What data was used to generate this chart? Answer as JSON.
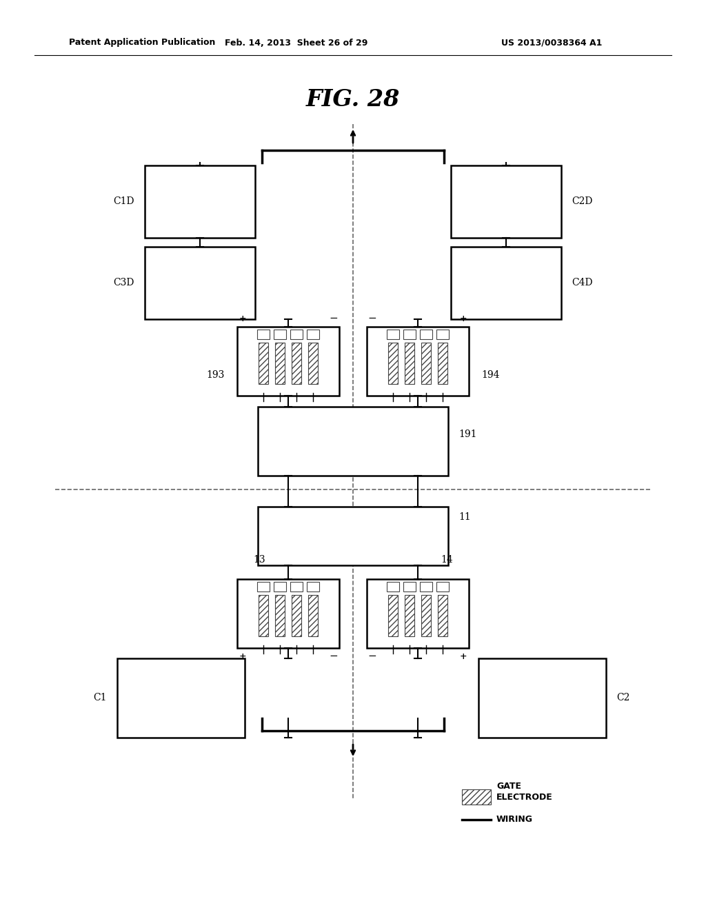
{
  "title": "FIG. 28",
  "header_left": "Patent Application Publication",
  "header_center": "Feb. 14, 2013  Sheet 26 of 29",
  "header_right": "US 2013/0038364 A1",
  "bg_color": "#ffffff",
  "line_color": "#000000",
  "legend_gate_label": "GATE",
  "legend_electrode_label": "ELECTRODE",
  "legend_wiring_label": "WIRING"
}
